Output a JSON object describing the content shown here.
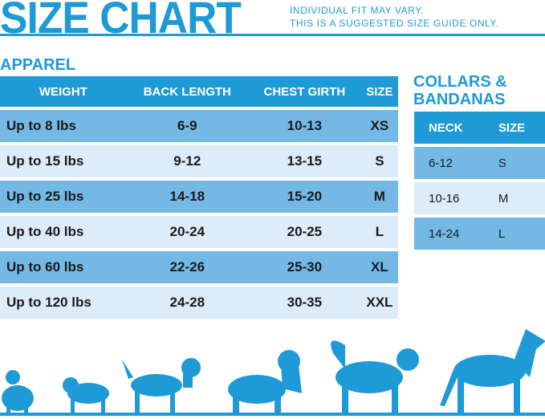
{
  "header": {
    "title": "SIZE CHART",
    "note_line1": "INDIVIDUAL FIT MAY VARY.",
    "note_line2": "THIS IS A SUGGESTED SIZE GUIDE ONLY."
  },
  "apparel": {
    "title": "APPAREL",
    "columns": [
      "WEIGHT",
      "BACK LENGTH",
      "CHEST GIRTH",
      "SIZE"
    ],
    "rows": [
      [
        "Up to 8 lbs",
        "6-9",
        "10-13",
        "XS"
      ],
      [
        "Up to 15 lbs",
        "9-12",
        "13-15",
        "S"
      ],
      [
        "Up to 25 lbs",
        "14-18",
        "15-20",
        "M"
      ],
      [
        "Up to 40 lbs",
        "20-24",
        "20-25",
        "L"
      ],
      [
        "Up to 60 lbs",
        "22-26",
        "25-30",
        "XL"
      ],
      [
        "Up to 120 lbs",
        "24-28",
        "30-35",
        "XXL"
      ]
    ]
  },
  "collars": {
    "title_line1": "COLLARS &",
    "title_line2": "BANDANAS",
    "columns": [
      "NECK",
      "SIZE"
    ],
    "rows": [
      [
        "6-12",
        "S"
      ],
      [
        "10-16",
        "M"
      ],
      [
        "14-24",
        "L"
      ]
    ]
  },
  "colors": {
    "accent": "#1e9ad6",
    "row_dark": "#74b9e6",
    "row_light": "#dcecf8"
  }
}
